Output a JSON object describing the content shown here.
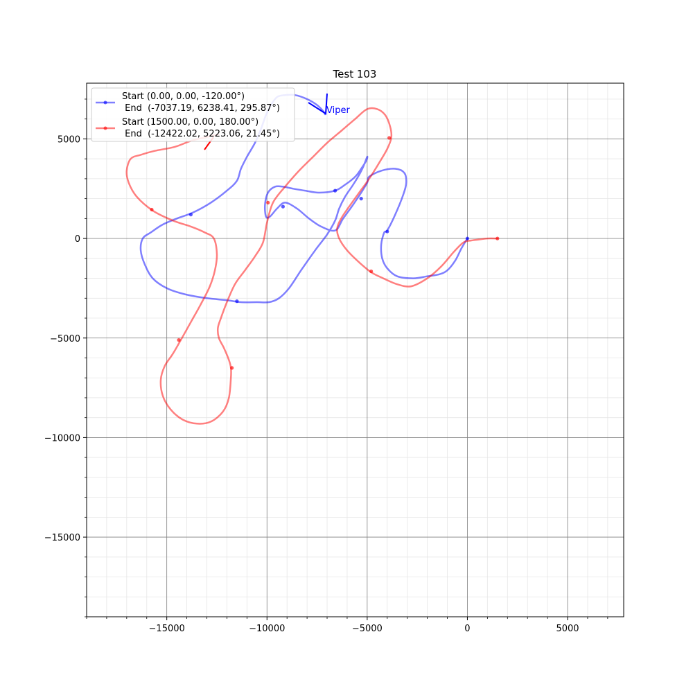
{
  "chart_data": {
    "type": "line",
    "title": "Test 103",
    "xlabel": "",
    "ylabel": "",
    "xlim": [
      -19000,
      7800
    ],
    "ylim": [
      -19000,
      7800
    ],
    "xticks": [
      -15000,
      -10000,
      -5000,
      0,
      5000
    ],
    "yticks": [
      -15000,
      -10000,
      -5000,
      0,
      5000
    ],
    "xtick_labels": [
      "−15000",
      "−10000",
      "−5000",
      "0",
      "5000"
    ],
    "ytick_labels": [
      "−15000",
      "−10000",
      "−5000",
      "0",
      "5000"
    ],
    "minor_step": 1000,
    "grid": true,
    "legend_position": "top-left",
    "series": [
      {
        "legend_line1": "Start (0.00, 0.00, -120.00°)",
        "legend_line2": " End  (-7037.19, 6238.41, 295.87°)",
        "color": "#0000ff",
        "x": [
          0,
          -300,
          -600,
          -1000,
          -1400,
          -2000,
          -2700,
          -3500,
          -4000,
          -4250,
          -4300,
          -4150,
          -4000,
          -3600,
          -3200,
          -3050,
          -3150,
          -3600,
          -4300,
          -4900,
          -5000,
          -5300,
          -5700,
          -6200,
          -6600,
          -7300,
          -7900,
          -8500,
          -9100,
          -9500,
          -9850,
          -10050,
          -10100,
          -9950,
          -9600,
          -9200,
          -8700,
          -8100,
          -7400,
          -6600,
          -6100,
          -5600,
          -5300,
          -5050,
          -5000,
          -5200,
          -5400,
          -5700,
          -6100,
          -6400,
          -6600,
          -7000,
          -7600,
          -8300,
          -8900,
          -9400,
          -9900,
          -10500,
          -11300,
          -12000,
          -13000,
          -14100,
          -15000,
          -15700,
          -16100,
          -16300,
          -16200,
          -15800,
          -15200,
          -14500,
          -13700,
          -12800,
          -12000,
          -11500,
          -11300,
          -11000,
          -10600,
          -10300,
          -10050,
          -9800,
          -9500,
          -9100,
          -8600,
          -8000,
          -7500,
          -7200,
          -7100
        ],
        "y": [
          0,
          -500,
          -1100,
          -1600,
          -1800,
          -1900,
          -2000,
          -1900,
          -1500,
          -1000,
          -300,
          300,
          400,
          1200,
          2200,
          2800,
          3300,
          3500,
          3400,
          3100,
          2800,
          2300,
          1700,
          1000,
          400,
          600,
          1000,
          1500,
          1800,
          1500,
          1100,
          1100,
          1700,
          2300,
          2600,
          2600,
          2500,
          2400,
          2300,
          2400,
          2700,
          3100,
          3500,
          3900,
          4100,
          3600,
          3200,
          2700,
          2100,
          1500,
          900,
          200,
          -600,
          -1600,
          -2500,
          -3000,
          -3200,
          -3200,
          -3200,
          -3100,
          -3000,
          -2800,
          -2500,
          -2000,
          -1300,
          -600,
          0,
          300,
          700,
          1000,
          1300,
          1800,
          2400,
          2900,
          3500,
          4100,
          4800,
          5500,
          6200,
          6700,
          7100,
          7200,
          7200,
          7000,
          6700,
          6400,
          6238
        ],
        "markers_x": [
          0,
          -4000,
          -5300,
          -6600,
          -9200,
          -11500,
          -13800
        ],
        "markers_y": [
          0,
          350,
          2000,
          2400,
          1600,
          -3150,
          1200
        ]
      },
      {
        "legend_line1": "Start (1500.00, 0.00, 180.00°)",
        "legend_line2": " End  (-12422.02, 5223.06, 21.45°)",
        "color": "#ff0000",
        "x": [
          1500,
          1000,
          600,
          200,
          -200,
          -700,
          -1300,
          -2000,
          -2800,
          -3500,
          -4200,
          -4800,
          -5400,
          -6000,
          -6400,
          -6500,
          -6300,
          -5900,
          -5400,
          -4900,
          -4400,
          -4000,
          -3800,
          -3850,
          -4100,
          -4500,
          -5000,
          -5600,
          -6300,
          -7000,
          -7700,
          -8400,
          -9100,
          -9700,
          -10000,
          -10200,
          -10600,
          -11100,
          -11600,
          -12000,
          -12300,
          -12450,
          -12400,
          -12150,
          -11900,
          -11800,
          -11800,
          -11900,
          -12200,
          -12800,
          -13500,
          -14200,
          -14800,
          -15200,
          -15300,
          -15100,
          -14700,
          -14300,
          -13800,
          -13300,
          -12850,
          -12600,
          -12500,
          -12650,
          -13100,
          -13800,
          -14700,
          -15700,
          -16500,
          -16900,
          -17000,
          -16800,
          -16300,
          -15600,
          -14600,
          -13800,
          -13000,
          -12422
        ],
        "y": [
          0,
          0,
          -50,
          -100,
          -200,
          -700,
          -1400,
          -2000,
          -2400,
          -2300,
          -2000,
          -1700,
          -1200,
          -600,
          0,
          500,
          1000,
          1600,
          2300,
          3000,
          3800,
          4500,
          5050,
          5600,
          6200,
          6500,
          6500,
          6000,
          5400,
          4800,
          4100,
          3400,
          2600,
          1800,
          800,
          -200,
          -900,
          -1600,
          -2300,
          -3200,
          -4000,
          -4500,
          -5000,
          -5500,
          -6100,
          -6500,
          -7000,
          -8000,
          -8700,
          -9200,
          -9300,
          -9100,
          -8600,
          -7900,
          -7100,
          -6400,
          -5800,
          -5100,
          -4200,
          -3300,
          -2400,
          -1600,
          -800,
          0,
          300,
          600,
          900,
          1400,
          2100,
          2800,
          3400,
          4000,
          4200,
          4400,
          4600,
          4900,
          5100,
          5223
        ],
        "markers_x": [
          1500,
          -3900,
          -4800,
          -9950,
          -11750,
          -14400,
          -15750
        ],
        "markers_y": [
          0,
          5050,
          -1650,
          1800,
          -6500,
          -5100,
          1450
        ]
      }
    ],
    "annotations": [
      {
        "text": "Viper",
        "color": "#0000ff"
      }
    ]
  }
}
